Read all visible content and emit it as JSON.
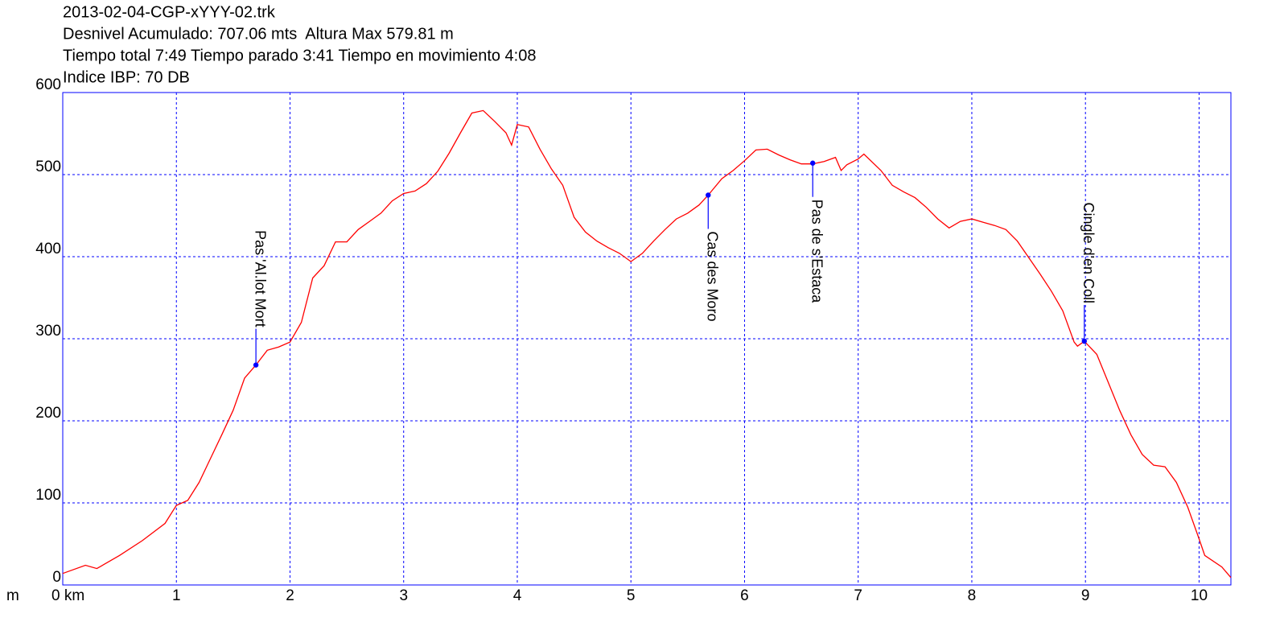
{
  "chart_data": {
    "type": "line",
    "title_lines": [
      "2013-02-04-CGP-xYYY-02.trk",
      "Desnivel Acumulado: 707.06 mts  Altura Max 579.81 m",
      "Tiempo total 7:49 Tiempo parado 3:41 Tiempo en movimiento 4:08",
      "Indice IBP: 70 DB"
    ],
    "ylabel": "m",
    "color": "#ff0000",
    "grid": true,
    "xlim": [
      0,
      10.28
    ],
    "ylim": [
      0,
      600
    ],
    "xticks": [
      {
        "value": 0,
        "label": "0 km"
      },
      1,
      2,
      3,
      4,
      5,
      6,
      7,
      8,
      9,
      10
    ],
    "yticks": [
      0,
      100,
      200,
      300,
      400,
      500,
      600
    ],
    "x": [
      0,
      0.2,
      0.3,
      0.5,
      0.7,
      0.9,
      1.0,
      1.1,
      1.2,
      1.3,
      1.4,
      1.5,
      1.6,
      1.7,
      1.8,
      1.9,
      2.0,
      2.1,
      2.2,
      2.3,
      2.4,
      2.5,
      2.6,
      2.7,
      2.8,
      2.9,
      3.0,
      3.1,
      3.2,
      3.3,
      3.4,
      3.5,
      3.6,
      3.7,
      3.8,
      3.9,
      3.95,
      4.0,
      4.1,
      4.2,
      4.3,
      4.4,
      4.5,
      4.6,
      4.7,
      4.8,
      4.9,
      5.0,
      5.1,
      5.2,
      5.3,
      5.4,
      5.5,
      5.6,
      5.68,
      5.8,
      5.9,
      6.0,
      6.1,
      6.2,
      6.3,
      6.4,
      6.5,
      6.6,
      6.7,
      6.8,
      6.85,
      6.9,
      7.0,
      7.05,
      7.2,
      7.3,
      7.4,
      7.5,
      7.6,
      7.7,
      7.8,
      7.9,
      8.0,
      8.1,
      8.2,
      8.3,
      8.4,
      8.5,
      8.6,
      8.7,
      8.8,
      8.9,
      8.93,
      8.99,
      9.1,
      9.2,
      9.3,
      9.4,
      9.5,
      9.6,
      9.7,
      9.8,
      9.9,
      10.0,
      10.05,
      10.2,
      10.28
    ],
    "values": [
      14,
      24,
      20,
      36,
      54,
      75,
      97,
      103,
      125,
      154,
      183,
      213,
      252,
      268,
      286,
      290,
      296,
      320,
      374,
      389,
      418,
      418,
      433,
      443,
      453,
      468,
      477,
      480,
      489,
      504,
      526,
      551,
      575,
      578,
      565,
      551,
      536,
      561,
      558,
      531,
      507,
      487,
      448,
      430,
      419,
      411,
      404,
      394,
      404,
      419,
      433,
      446,
      453,
      463,
      475,
      495,
      505,
      517,
      530,
      531,
      524,
      518,
      513,
      513,
      516,
      521,
      505,
      512,
      519,
      525,
      505,
      487,
      479,
      472,
      460,
      446,
      435,
      443,
      446,
      442,
      438,
      433,
      419,
      399,
      379,
      358,
      334,
      296,
      291,
      297,
      281,
      247,
      213,
      183,
      159,
      146,
      144,
      125,
      95,
      56,
      36,
      22,
      9
    ],
    "waypoints": [
      {
        "label": "Pas 'Al.lot Mort",
        "x": 1.7,
        "y": 268,
        "label_side": "above"
      },
      {
        "label": "Cas des Moro",
        "x": 5.68,
        "y": 475,
        "label_side": "below"
      },
      {
        "label": "Pas de s'Estaca",
        "x": 6.6,
        "y": 514,
        "label_side": "below"
      },
      {
        "label": "Cingle d'en Coll",
        "x": 8.99,
        "y": 297,
        "label_side": "above"
      }
    ],
    "waypoint_color": "#0000ff"
  }
}
